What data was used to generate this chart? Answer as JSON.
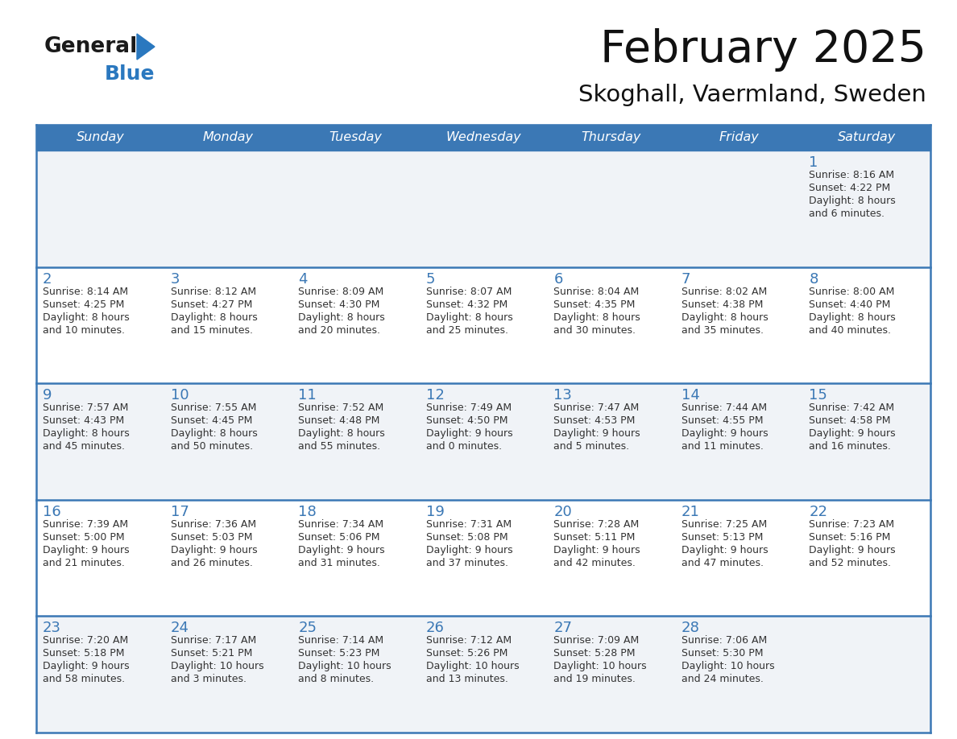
{
  "title": "February 2025",
  "subtitle": "Skoghall, Vaermland, Sweden",
  "header_color": "#3b78b5",
  "header_text_color": "#ffffff",
  "day_names": [
    "Sunday",
    "Monday",
    "Tuesday",
    "Wednesday",
    "Thursday",
    "Friday",
    "Saturday"
  ],
  "grid_line_color": "#3b78b5",
  "day_number_color": "#3b78b5",
  "cell_text_color": "#333333",
  "bg_color": "#ffffff",
  "row0_bg": "#f0f3f7",
  "row1_bg": "#ffffff",
  "row2_bg": "#f0f3f7",
  "row3_bg": "#ffffff",
  "row4_bg": "#f0f3f7",
  "logo_general_color": "#1a1a1a",
  "logo_blue_color": "#2a78bf",
  "calendar_data": [
    {
      "day": 1,
      "col": 6,
      "row": 0,
      "sunrise": "8:16 AM",
      "sunset": "4:22 PM",
      "daylight": "8 hours and 6 minutes."
    },
    {
      "day": 2,
      "col": 0,
      "row": 1,
      "sunrise": "8:14 AM",
      "sunset": "4:25 PM",
      "daylight": "8 hours and 10 minutes."
    },
    {
      "day": 3,
      "col": 1,
      "row": 1,
      "sunrise": "8:12 AM",
      "sunset": "4:27 PM",
      "daylight": "8 hours and 15 minutes."
    },
    {
      "day": 4,
      "col": 2,
      "row": 1,
      "sunrise": "8:09 AM",
      "sunset": "4:30 PM",
      "daylight": "8 hours and 20 minutes."
    },
    {
      "day": 5,
      "col": 3,
      "row": 1,
      "sunrise": "8:07 AM",
      "sunset": "4:32 PM",
      "daylight": "8 hours and 25 minutes."
    },
    {
      "day": 6,
      "col": 4,
      "row": 1,
      "sunrise": "8:04 AM",
      "sunset": "4:35 PM",
      "daylight": "8 hours and 30 minutes."
    },
    {
      "day": 7,
      "col": 5,
      "row": 1,
      "sunrise": "8:02 AM",
      "sunset": "4:38 PM",
      "daylight": "8 hours and 35 minutes."
    },
    {
      "day": 8,
      "col": 6,
      "row": 1,
      "sunrise": "8:00 AM",
      "sunset": "4:40 PM",
      "daylight": "8 hours and 40 minutes."
    },
    {
      "day": 9,
      "col": 0,
      "row": 2,
      "sunrise": "7:57 AM",
      "sunset": "4:43 PM",
      "daylight": "8 hours and 45 minutes."
    },
    {
      "day": 10,
      "col": 1,
      "row": 2,
      "sunrise": "7:55 AM",
      "sunset": "4:45 PM",
      "daylight": "8 hours and 50 minutes."
    },
    {
      "day": 11,
      "col": 2,
      "row": 2,
      "sunrise": "7:52 AM",
      "sunset": "4:48 PM",
      "daylight": "8 hours and 55 minutes."
    },
    {
      "day": 12,
      "col": 3,
      "row": 2,
      "sunrise": "7:49 AM",
      "sunset": "4:50 PM",
      "daylight": "9 hours and 0 minutes."
    },
    {
      "day": 13,
      "col": 4,
      "row": 2,
      "sunrise": "7:47 AM",
      "sunset": "4:53 PM",
      "daylight": "9 hours and 5 minutes."
    },
    {
      "day": 14,
      "col": 5,
      "row": 2,
      "sunrise": "7:44 AM",
      "sunset": "4:55 PM",
      "daylight": "9 hours and 11 minutes."
    },
    {
      "day": 15,
      "col": 6,
      "row": 2,
      "sunrise": "7:42 AM",
      "sunset": "4:58 PM",
      "daylight": "9 hours and 16 minutes."
    },
    {
      "day": 16,
      "col": 0,
      "row": 3,
      "sunrise": "7:39 AM",
      "sunset": "5:00 PM",
      "daylight": "9 hours and 21 minutes."
    },
    {
      "day": 17,
      "col": 1,
      "row": 3,
      "sunrise": "7:36 AM",
      "sunset": "5:03 PM",
      "daylight": "9 hours and 26 minutes."
    },
    {
      "day": 18,
      "col": 2,
      "row": 3,
      "sunrise": "7:34 AM",
      "sunset": "5:06 PM",
      "daylight": "9 hours and 31 minutes."
    },
    {
      "day": 19,
      "col": 3,
      "row": 3,
      "sunrise": "7:31 AM",
      "sunset": "5:08 PM",
      "daylight": "9 hours and 37 minutes."
    },
    {
      "day": 20,
      "col": 4,
      "row": 3,
      "sunrise": "7:28 AM",
      "sunset": "5:11 PM",
      "daylight": "9 hours and 42 minutes."
    },
    {
      "day": 21,
      "col": 5,
      "row": 3,
      "sunrise": "7:25 AM",
      "sunset": "5:13 PM",
      "daylight": "9 hours and 47 minutes."
    },
    {
      "day": 22,
      "col": 6,
      "row": 3,
      "sunrise": "7:23 AM",
      "sunset": "5:16 PM",
      "daylight": "9 hours and 52 minutes."
    },
    {
      "day": 23,
      "col": 0,
      "row": 4,
      "sunrise": "7:20 AM",
      "sunset": "5:18 PM",
      "daylight": "9 hours and 58 minutes."
    },
    {
      "day": 24,
      "col": 1,
      "row": 4,
      "sunrise": "7:17 AM",
      "sunset": "5:21 PM",
      "daylight": "10 hours and 3 minutes."
    },
    {
      "day": 25,
      "col": 2,
      "row": 4,
      "sunrise": "7:14 AM",
      "sunset": "5:23 PM",
      "daylight": "10 hours and 8 minutes."
    },
    {
      "day": 26,
      "col": 3,
      "row": 4,
      "sunrise": "7:12 AM",
      "sunset": "5:26 PM",
      "daylight": "10 hours and 13 minutes."
    },
    {
      "day": 27,
      "col": 4,
      "row": 4,
      "sunrise": "7:09 AM",
      "sunset": "5:28 PM",
      "daylight": "10 hours and 19 minutes."
    },
    {
      "day": 28,
      "col": 5,
      "row": 4,
      "sunrise": "7:06 AM",
      "sunset": "5:30 PM",
      "daylight": "10 hours and 24 minutes."
    }
  ]
}
